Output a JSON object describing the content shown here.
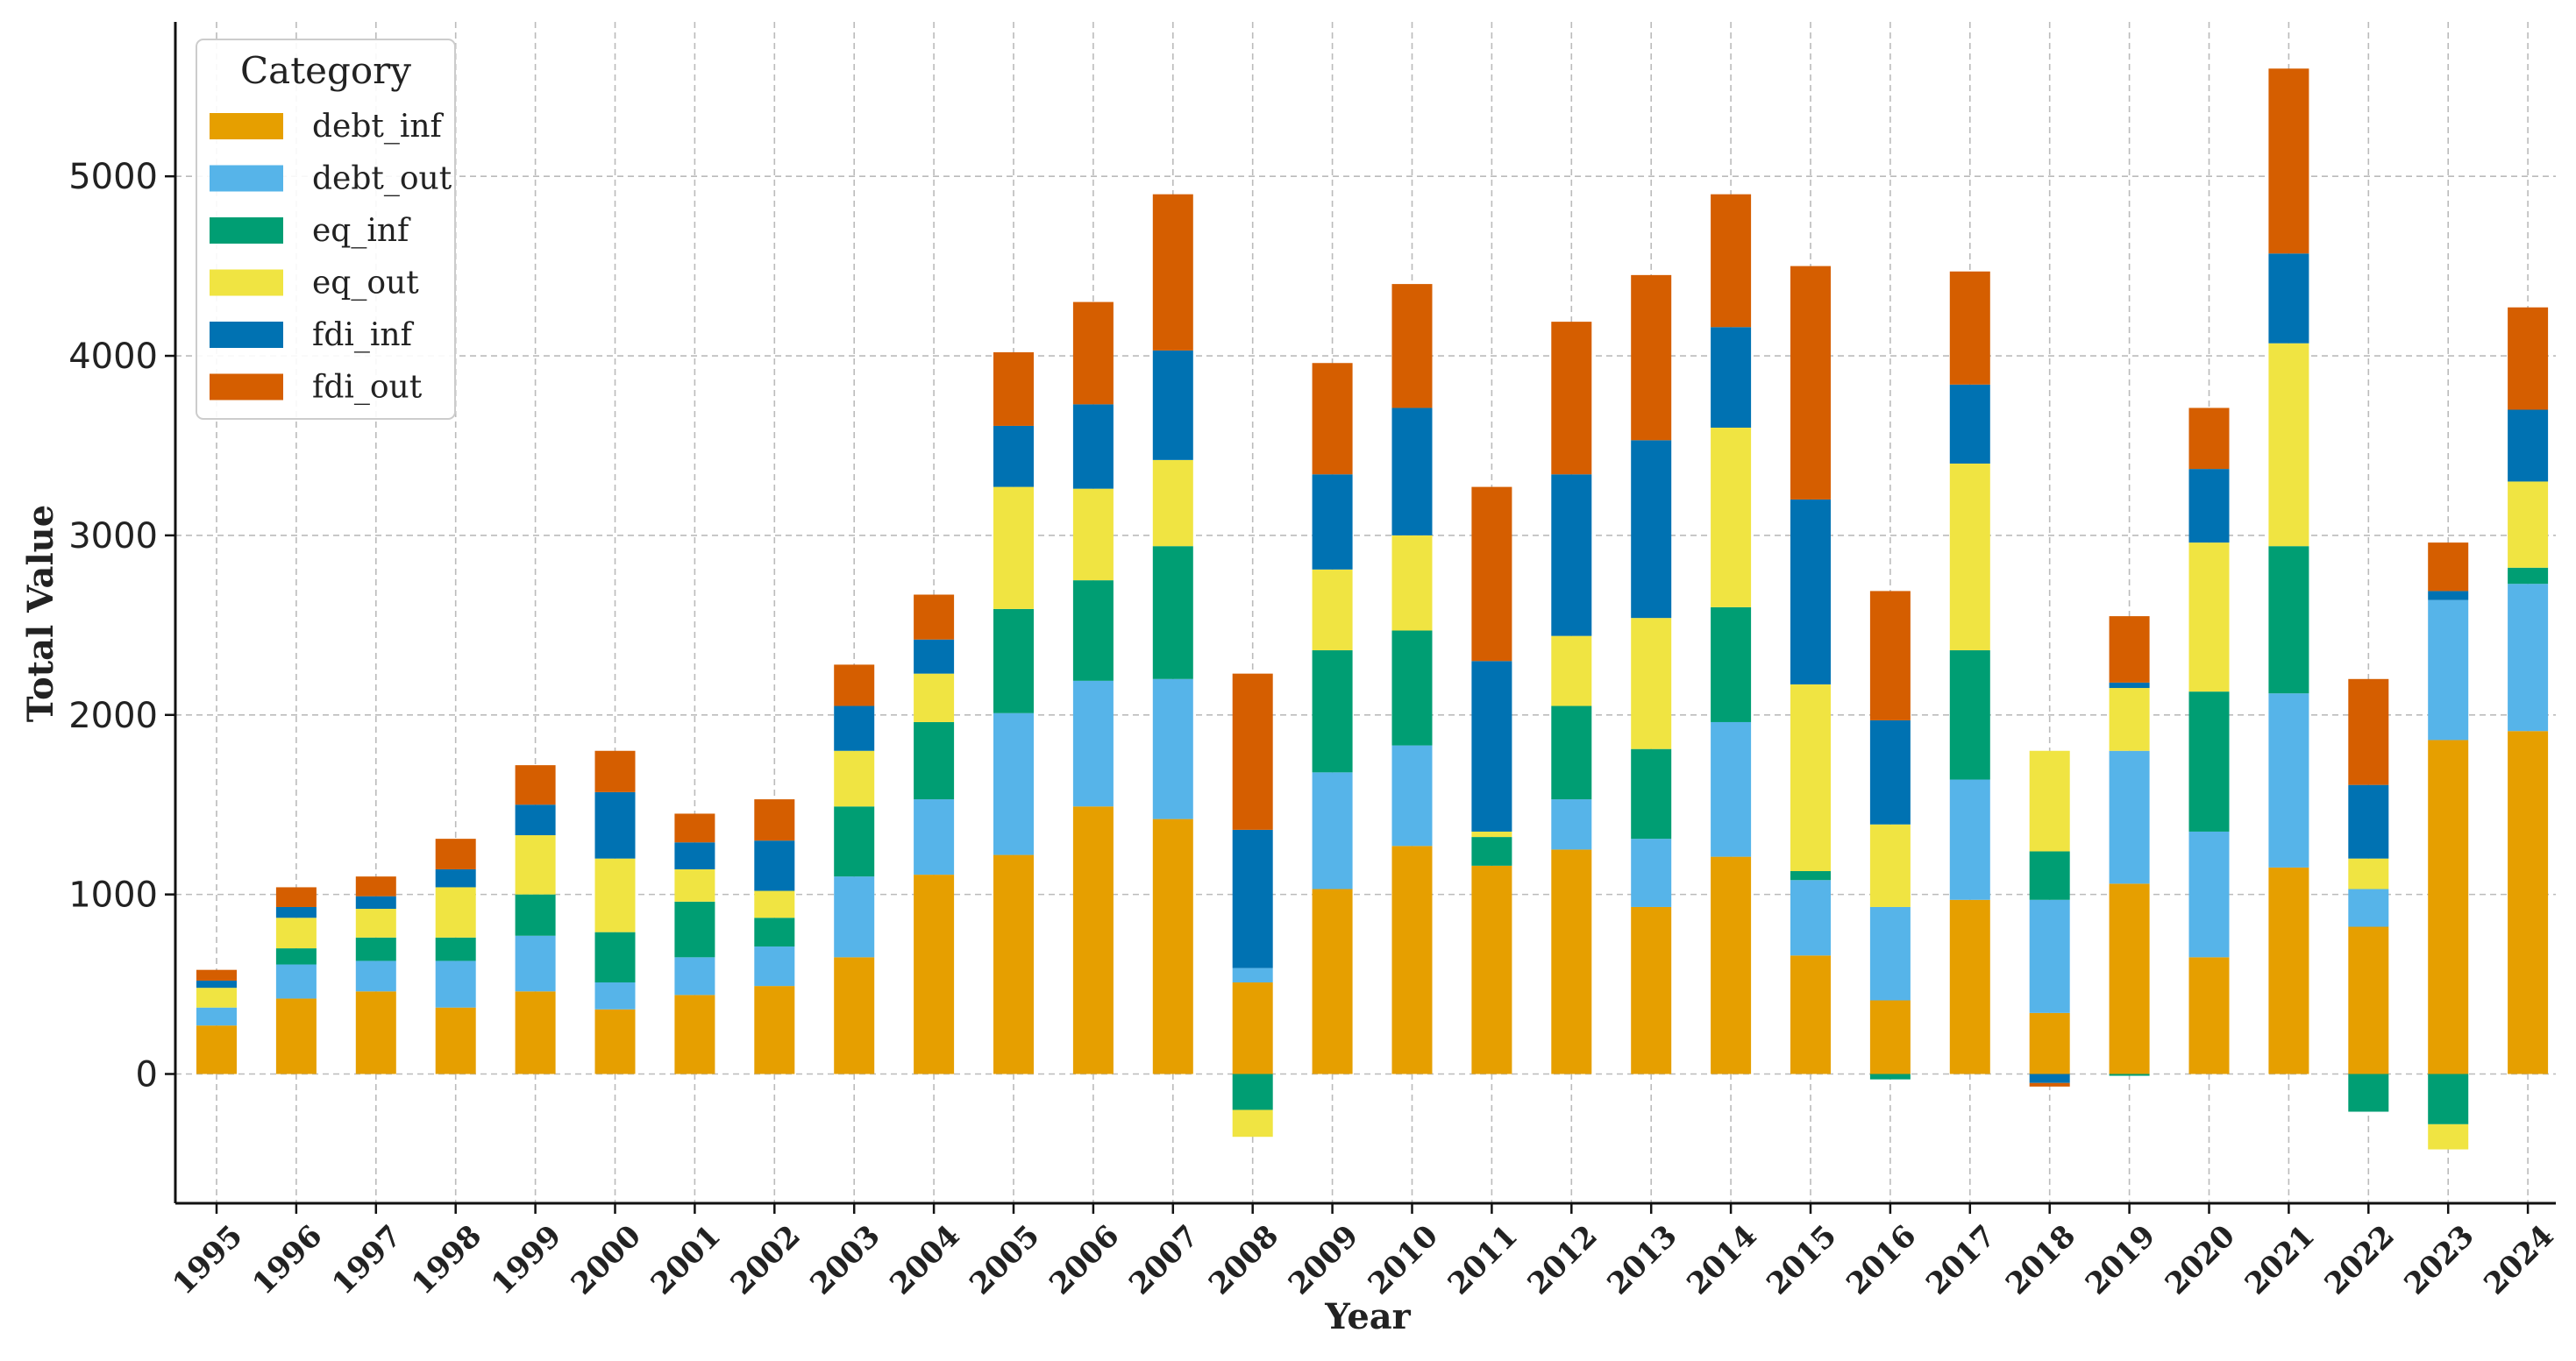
{
  "chart_data": {
    "type": "bar",
    "stacked": true,
    "xlabel": "Year",
    "ylabel": "Total Value",
    "ylim": [
      -720,
      5860
    ],
    "yticks": [
      0,
      1000,
      2000,
      3000,
      4000,
      5000
    ],
    "grid": true,
    "legend": {
      "title": "Category",
      "placement": "top-left"
    },
    "categories": [
      "1995",
      "1996",
      "1997",
      "1998",
      "1999",
      "2000",
      "2001",
      "2002",
      "2003",
      "2004",
      "2005",
      "2006",
      "2007",
      "2008",
      "2009",
      "2010",
      "2011",
      "2012",
      "2013",
      "2014",
      "2015",
      "2016",
      "2017",
      "2018",
      "2019",
      "2020",
      "2021",
      "2022",
      "2023",
      "2024"
    ],
    "series": [
      {
        "name": "debt_inf",
        "color": "#E69F00",
        "values": [
          270,
          420,
          460,
          370,
          460,
          360,
          440,
          490,
          650,
          1110,
          1220,
          1490,
          1420,
          510,
          1030,
          1270,
          1160,
          1250,
          930,
          1210,
          660,
          410,
          970,
          340,
          1060,
          650,
          1150,
          820,
          1860,
          1910
        ]
      },
      {
        "name": "debt_out",
        "color": "#56B4E9",
        "values": [
          100,
          190,
          170,
          260,
          310,
          150,
          210,
          220,
          450,
          420,
          790,
          700,
          780,
          80,
          650,
          560,
          0,
          280,
          380,
          750,
          420,
          520,
          670,
          630,
          740,
          700,
          970,
          210,
          780,
          820
        ]
      },
      {
        "name": "eq_inf",
        "color": "#009E73",
        "values": [
          0,
          90,
          130,
          130,
          230,
          280,
          310,
          160,
          390,
          430,
          580,
          560,
          740,
          -200,
          680,
          640,
          160,
          520,
          500,
          640,
          50,
          -30,
          720,
          270,
          -10,
          780,
          820,
          -210,
          -280,
          90
        ]
      },
      {
        "name": "eq_out",
        "color": "#F0E442",
        "values": [
          110,
          170,
          160,
          280,
          330,
          410,
          180,
          150,
          310,
          270,
          680,
          510,
          480,
          -150,
          450,
          530,
          30,
          390,
          730,
          1000,
          1040,
          460,
          1040,
          560,
          350,
          830,
          1130,
          170,
          -140,
          480
        ]
      },
      {
        "name": "fdi_inf",
        "color": "#0072B2",
        "values": [
          40,
          60,
          70,
          100,
          170,
          370,
          150,
          280,
          250,
          190,
          340,
          470,
          610,
          770,
          530,
          710,
          950,
          900,
          990,
          560,
          1030,
          580,
          440,
          -50,
          30,
          410,
          500,
          410,
          50,
          400
        ]
      },
      {
        "name": "fdi_out",
        "color": "#D55E00",
        "values": [
          60,
          110,
          110,
          170,
          220,
          230,
          160,
          230,
          230,
          250,
          410,
          570,
          870,
          870,
          620,
          690,
          970,
          850,
          920,
          740,
          1300,
          720,
          630,
          -20,
          370,
          340,
          1030,
          590,
          270,
          570
        ]
      }
    ]
  }
}
